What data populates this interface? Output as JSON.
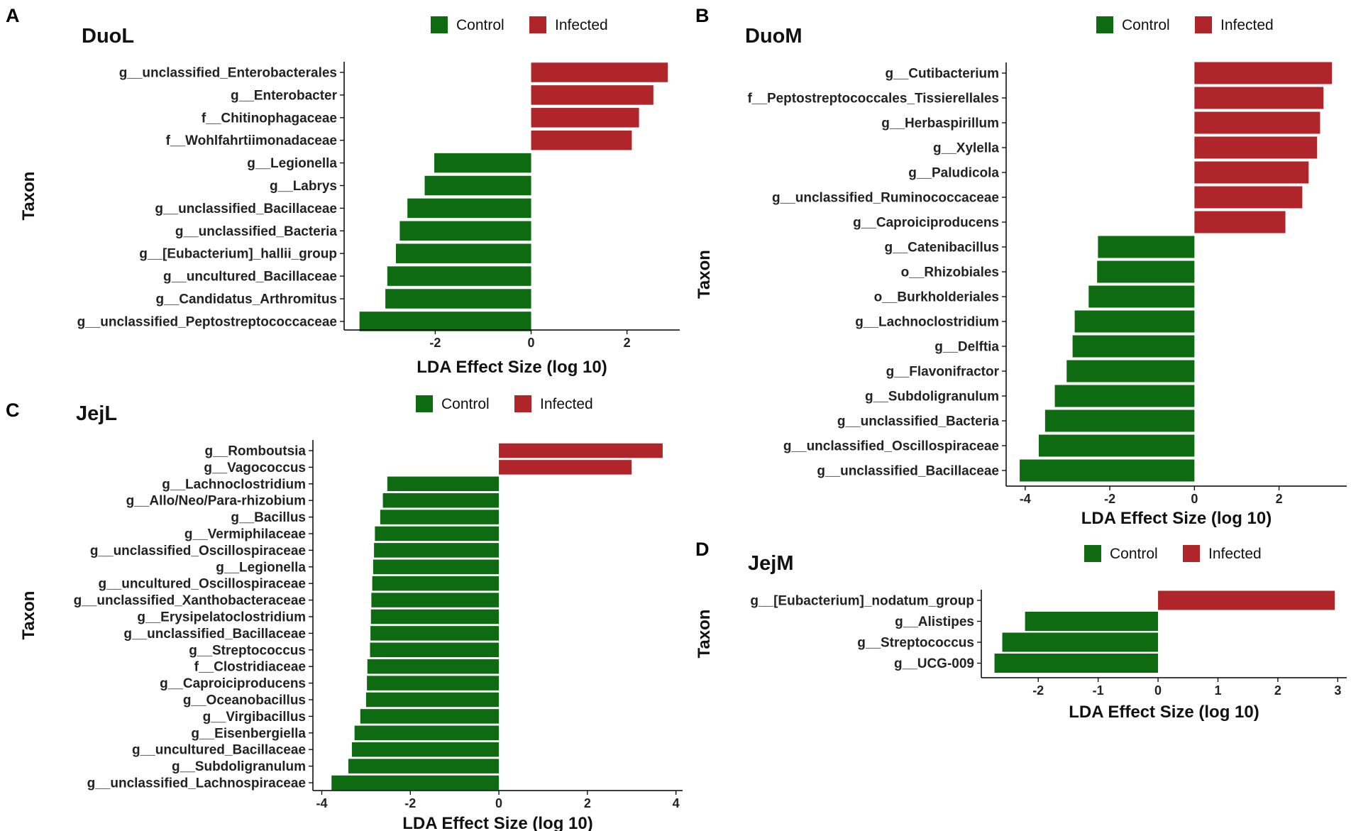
{
  "figure": {
    "legend": {
      "control_label": "Control",
      "infected_label": "Infected"
    },
    "colors": {
      "control": "#0e6b12",
      "infected": "#b0252a",
      "axis": "#000000",
      "text": "#111111"
    }
  },
  "chart_data": [
    {
      "panel": "A",
      "title": "DuoL",
      "type": "bar",
      "orientation": "horizontal",
      "xlabel": "LDA Effect Size (log 10)",
      "ylabel": "Taxon",
      "xlim": [
        -3.9,
        3.1
      ],
      "xticks": [
        -2,
        0,
        2
      ],
      "categories": [
        "g__unclassified_Enterobacterales",
        "g__Enterobacter",
        "f__Chitinophagaceae",
        "f__Wohlfahrtiimonadaceae",
        "g__Legionella",
        "g__Labrys",
        "g__unclassified_Bacillaceae",
        "g__unclassified_Bacteria",
        "g__[Eubacterium]_hallii_group",
        "g__uncultured_Bacillaceae",
        "g__Candidatus_Arthromitus",
        "g__unclassified_Peptostreptococcaceae"
      ],
      "values": [
        2.85,
        2.55,
        2.25,
        2.1,
        -2.02,
        -2.22,
        -2.58,
        -2.74,
        -2.82,
        -3.0,
        -3.04,
        -3.58
      ],
      "groups": [
        "Infected",
        "Infected",
        "Infected",
        "Infected",
        "Control",
        "Control",
        "Control",
        "Control",
        "Control",
        "Control",
        "Control",
        "Control"
      ],
      "legend_position": "top"
    },
    {
      "panel": "B",
      "title": "DuoM",
      "type": "bar",
      "orientation": "horizontal",
      "xlabel": "LDA Effect Size (log 10)",
      "ylabel": "Taxon",
      "xlim": [
        -4.45,
        3.6
      ],
      "xticks": [
        -4,
        -2,
        0,
        2
      ],
      "categories": [
        "g__Cutibacterium",
        "f__Peptostreptococcales_Tissierellales",
        "g__Herbaspirillum",
        "g__Xylella",
        "g__Paludicola",
        "g__unclassified_Ruminococcaceae",
        "g__Caproiciproducens",
        "g__Catenibacillus",
        "o__Rhizobiales",
        "o__Burkholderiales",
        "g__Lachnoclostridium",
        "g__Delftia",
        "g__Flavonifractor",
        "g__Subdoligranulum",
        "g__unclassified_Bacteria",
        "g__unclassified_Oscillospiraceae",
        "g__unclassified_Bacillaceae"
      ],
      "values": [
        3.25,
        3.05,
        2.97,
        2.9,
        2.7,
        2.55,
        2.15,
        -2.28,
        -2.3,
        -2.5,
        -2.83,
        -2.88,
        -3.02,
        -3.3,
        -3.53,
        -3.68,
        -4.13
      ],
      "groups": [
        "Infected",
        "Infected",
        "Infected",
        "Infected",
        "Infected",
        "Infected",
        "Infected",
        "Control",
        "Control",
        "Control",
        "Control",
        "Control",
        "Control",
        "Control",
        "Control",
        "Control",
        "Control"
      ],
      "legend_position": "top"
    },
    {
      "panel": "C",
      "title": "JejL",
      "type": "bar",
      "orientation": "horizontal",
      "xlabel": "LDA Effect Size (log 10)",
      "ylabel": "Taxon",
      "xlim": [
        -4.2,
        4.15
      ],
      "xticks": [
        -4,
        -2,
        0,
        2,
        4
      ],
      "categories": [
        "g__Romboutsia",
        "g__Vagococcus",
        "g__Lachnoclostridium",
        "g__Allo/Neo/Para-rhizobium",
        "g__Bacillus",
        "g__Vermiphilaceae",
        "g__unclassified_Oscillospiraceae",
        "g__Legionella",
        "g__uncultured_Oscillospiraceae",
        "g__unclassified_Xanthobacteraceae",
        "g__Erysipelatoclostridium",
        "g__unclassified_Bacillaceae",
        "g__Streptococcus",
        "f__Clostridiaceae",
        "g__Caproiciproducens",
        "g__Oceanobacillus",
        "g__Virgibacillus",
        "g__Eisenbergiella",
        "g__uncultured_Bacillaceae",
        "g__Subdoligranulum",
        "g__unclassified_Lachnospiraceae"
      ],
      "values": [
        3.7,
        3.0,
        -2.52,
        -2.62,
        -2.68,
        -2.8,
        -2.82,
        -2.84,
        -2.86,
        -2.88,
        -2.89,
        -2.9,
        -2.91,
        -2.97,
        -2.98,
        -3.0,
        -3.13,
        -3.26,
        -3.32,
        -3.4,
        -3.78
      ],
      "groups": [
        "Infected",
        "Infected",
        "Control",
        "Control",
        "Control",
        "Control",
        "Control",
        "Control",
        "Control",
        "Control",
        "Control",
        "Control",
        "Control",
        "Control",
        "Control",
        "Control",
        "Control",
        "Control",
        "Control",
        "Control",
        "Control"
      ],
      "legend_position": "top"
    },
    {
      "panel": "D",
      "title": "JejM",
      "type": "bar",
      "orientation": "horizontal",
      "xlabel": "LDA Effect Size (log 10)",
      "ylabel": "Taxon",
      "xlim": [
        -2.95,
        3.15
      ],
      "xticks": [
        -2,
        -1,
        0,
        1,
        2,
        3
      ],
      "categories": [
        "g__[Eubacterium]_nodatum_group",
        "g__Alistipes",
        "g__Streptococcus",
        "g__UCG-009"
      ],
      "values": [
        2.95,
        -2.22,
        -2.6,
        -2.73
      ],
      "groups": [
        "Infected",
        "Control",
        "Control",
        "Control"
      ],
      "legend_position": "top"
    }
  ]
}
